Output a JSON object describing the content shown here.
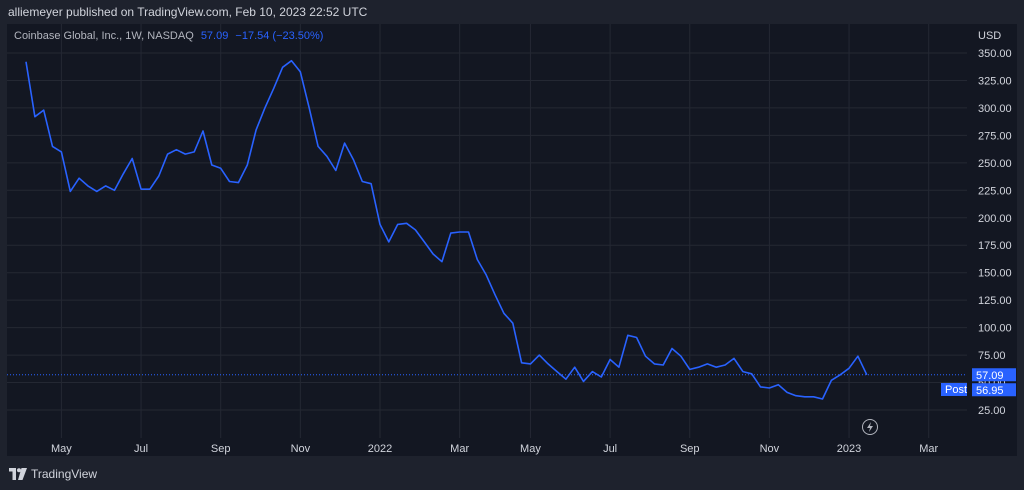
{
  "header": {
    "text": "alliemeyer published on TradingView.com, Feb 10, 2023 22:52 UTC"
  },
  "legend": {
    "name": "Coinbase Global, Inc., 1W, NASDAQ",
    "price": "57.09",
    "change": "−17.54 (−23.50%)"
  },
  "axis": {
    "currency": "USD"
  },
  "labels": {
    "price_badge": "57.09",
    "post_tag": "Post",
    "post_value": "56.95"
  },
  "footer": {
    "brand": "TradingView"
  },
  "icons": {
    "flash": "flash-icon",
    "logo": "tradingview-logo-icon"
  },
  "colors": {
    "line": "#2962ff",
    "background": "#131722",
    "price_label": "#2962ff"
  },
  "chart_data": {
    "type": "line",
    "title": "Coinbase Global, Inc., 1W, NASDAQ",
    "xlabel": "",
    "ylabel": "",
    "ylim": [
      25,
      350
    ],
    "yticks": [
      25,
      50,
      75,
      100,
      125,
      150,
      175,
      200,
      225,
      250,
      275,
      300,
      325,
      350
    ],
    "ytick_labels": [
      "25.00",
      "50.00",
      "75.00",
      "100.00",
      "125.00",
      "150.00",
      "175.00",
      "200.00",
      "225.00",
      "250.00",
      "275.00",
      "300.00",
      "325.00",
      "350.00"
    ],
    "xticks": [
      {
        "label": "May",
        "week": 4
      },
      {
        "label": "Jul",
        "week": 13
      },
      {
        "label": "Sep",
        "week": 22
      },
      {
        "label": "Nov",
        "week": 31
      },
      {
        "label": "2022",
        "week": 40
      },
      {
        "label": "Mar",
        "week": 49
      },
      {
        "label": "May",
        "week": 57
      },
      {
        "label": "Jul",
        "week": 66
      },
      {
        "label": "Sep",
        "week": 75
      },
      {
        "label": "Nov",
        "week": 84
      },
      {
        "label": "2023",
        "week": 93
      },
      {
        "label": "Mar",
        "week": 102
      }
    ],
    "grid": true,
    "series": [
      {
        "values": [
          342,
          292,
          298,
          265,
          260,
          224,
          236,
          229,
          224,
          229,
          225,
          240,
          254,
          226,
          226,
          238,
          258,
          262,
          258,
          260,
          279,
          248,
          245,
          233,
          232,
          248,
          280,
          300,
          318,
          337,
          343,
          333,
          300,
          265,
          256,
          243,
          268,
          253,
          233,
          231,
          194,
          178,
          194,
          195,
          189,
          178,
          167,
          160,
          186,
          187,
          187,
          162,
          148,
          130,
          113,
          104,
          68,
          67,
          75,
          67,
          60,
          53,
          64,
          51,
          60,
          55,
          71,
          64,
          93,
          91,
          74,
          67,
          66,
          81,
          74,
          62,
          64,
          67,
          64,
          66,
          72,
          60,
          58,
          46,
          45,
          48,
          41,
          38,
          37,
          37,
          35,
          52,
          57,
          63,
          74,
          57
        ]
      }
    ],
    "last_price": 57.09,
    "post_price": 56.95
  }
}
